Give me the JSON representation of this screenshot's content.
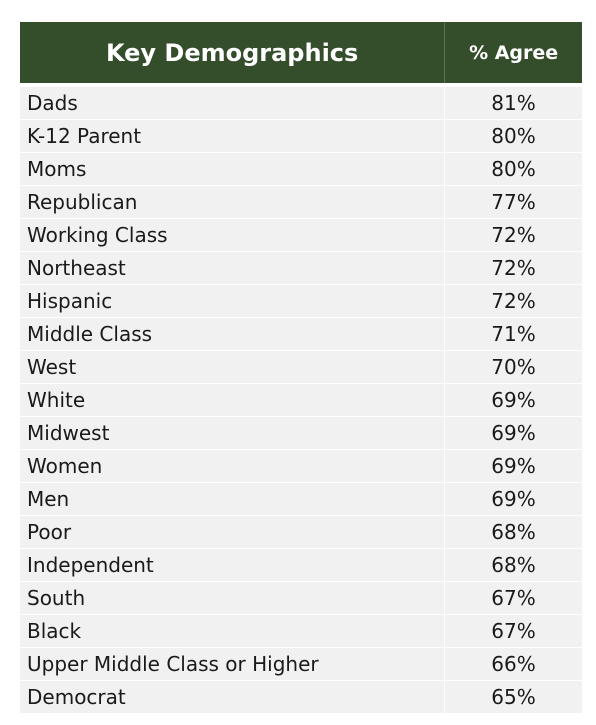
{
  "chart_data": {
    "type": "table",
    "columns": [
      "Key Demographics",
      "% Agree"
    ],
    "rows": [
      {
        "label": "Dads",
        "value": "81%"
      },
      {
        "label": "K-12 Parent",
        "value": "80%"
      },
      {
        "label": "Moms",
        "value": "80%"
      },
      {
        "label": "Republican",
        "value": "77%"
      },
      {
        "label": "Working Class",
        "value": "72%"
      },
      {
        "label": "Northeast",
        "value": "72%"
      },
      {
        "label": "Hispanic",
        "value": "72%"
      },
      {
        "label": "Middle Class",
        "value": "71%"
      },
      {
        "label": "West",
        "value": "70%"
      },
      {
        "label": "White",
        "value": "69%"
      },
      {
        "label": "Midwest",
        "value": "69%"
      },
      {
        "label": "Women",
        "value": "69%"
      },
      {
        "label": "Men",
        "value": "69%"
      },
      {
        "label": "Poor",
        "value": "68%"
      },
      {
        "label": "Independent",
        "value": "68%"
      },
      {
        "label": "South",
        "value": "67%"
      },
      {
        "label": "Black",
        "value": "67%"
      },
      {
        "label": "Upper Middle Class or Higher",
        "value": "66%"
      },
      {
        "label": "Democrat",
        "value": "65%"
      }
    ]
  },
  "colors": {
    "header_bg": "#344d2a",
    "header_text": "#ffffff",
    "row_bg": "#f1f1f1",
    "row_text": "#1a1a1a"
  }
}
